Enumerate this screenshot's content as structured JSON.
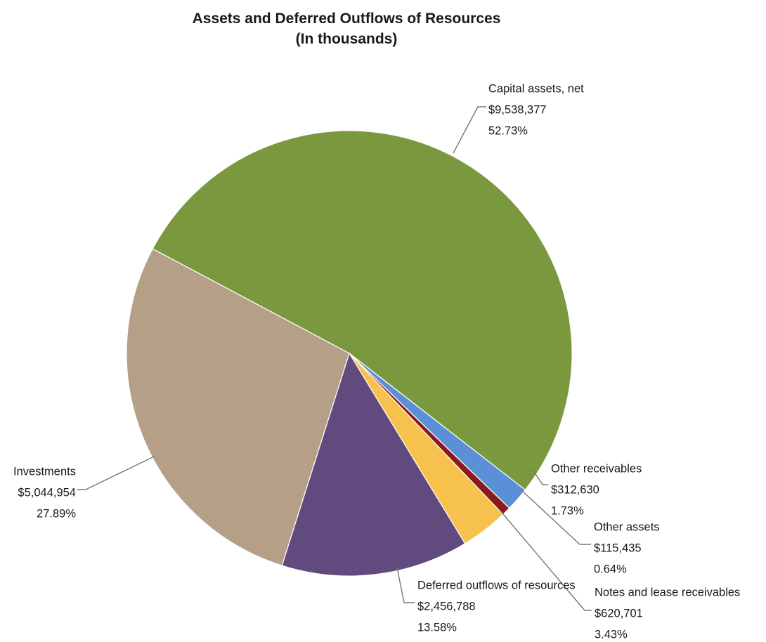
{
  "chart_data": {
    "type": "pie",
    "title": "Assets and Deferred Outflows of Resources",
    "subtitle": "(In thousands)",
    "slices": [
      {
        "label": "Capital assets, net",
        "value_text": "$9,538,377",
        "percent_text": "52.73%",
        "value": 9538377,
        "percent": 52.73,
        "color": "#7a983e"
      },
      {
        "label": "Other receivables",
        "value_text": "$312,630",
        "percent_text": "1.73%",
        "value": 312630,
        "percent": 1.73,
        "color": "#5b8fd6"
      },
      {
        "label": "Other assets",
        "value_text": "$115,435",
        "percent_text": "0.64%",
        "value": 115435,
        "percent": 0.64,
        "color": "#8b1a1a"
      },
      {
        "label": "Notes and lease receivables",
        "value_text": "$620,701",
        "percent_text": "3.43%",
        "value": 620701,
        "percent": 3.43,
        "color": "#f7c14d"
      },
      {
        "label": "Deferred outflows of resources",
        "value_text": "$2,456,788",
        "percent_text": "13.58%",
        "value": 2456788,
        "percent": 13.58,
        "color": "#614a7d"
      },
      {
        "label": "Investments",
        "value_text": "$5,044,954",
        "percent_text": "27.89%",
        "value": 5044954,
        "percent": 27.89,
        "color": "#b59f87"
      }
    ]
  }
}
